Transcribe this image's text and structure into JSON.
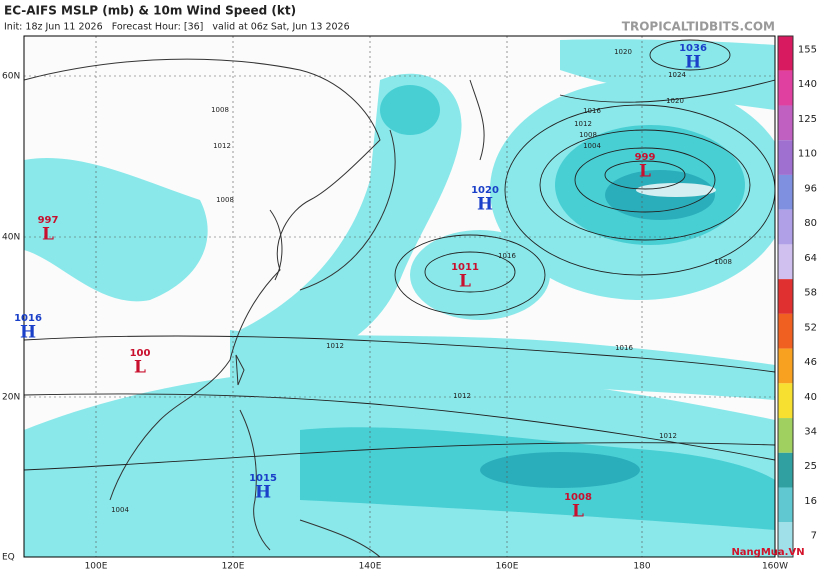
{
  "header": {
    "title": "EC-AIFS MSLP (mb) & 10m Wind Speed (kt)",
    "subtitle": "Init: 18z Jun 11 2026   Forecast Hour: [36]   valid at 06z Sat, Jun 13 2026",
    "site": "TROPICALTIDBITS.COM"
  },
  "map": {
    "latitude_labels": [
      "60N",
      "40N",
      "20N",
      "EQ"
    ],
    "longitude_labels": [
      "100E",
      "120E",
      "140E",
      "160E",
      "180",
      "160W"
    ],
    "pressure_centers": [
      {
        "symbol": "H",
        "value": "1036"
      },
      {
        "symbol": "L",
        "value": "999"
      },
      {
        "symbol": "H",
        "value": "1020"
      },
      {
        "symbol": "L",
        "value": "1011"
      },
      {
        "symbol": "L",
        "value": "997"
      },
      {
        "symbol": "H",
        "value": "1016"
      },
      {
        "symbol": "L",
        "value": "100"
      },
      {
        "symbol": "H",
        "value": "1015"
      },
      {
        "symbol": "L",
        "value": "1008"
      }
    ],
    "isobar_labels": [
      "1020",
      "1024",
      "1020",
      "1016",
      "1012",
      "1008",
      "1004",
      "1016",
      "1008",
      "1016",
      "1012",
      "1012",
      "1012",
      "1008",
      "1012",
      "1008",
      "1004"
    ]
  },
  "colorbar": {
    "ticks": [
      155,
      140,
      125,
      110,
      96,
      80,
      64,
      58,
      52,
      46,
      40,
      34,
      25,
      16,
      7
    ]
  },
  "watermark": "NangMua.VN"
}
